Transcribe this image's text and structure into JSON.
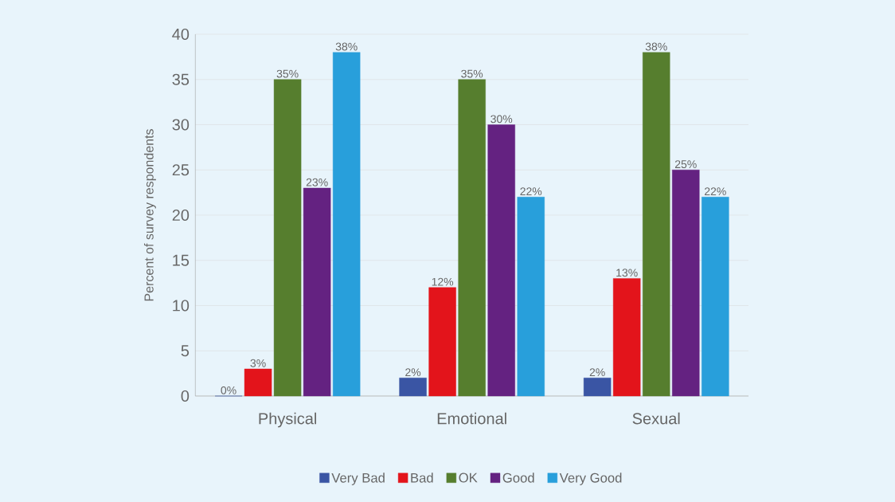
{
  "chart_data": {
    "type": "bar",
    "ylabel": "Percent of survey respondents",
    "categories": [
      "Physical",
      "Emotional",
      "Sexual"
    ],
    "series": [
      {
        "name": "Very Bad",
        "color": "#3a55a4",
        "values": [
          0,
          2,
          2
        ],
        "value_labels": [
          "0%",
          "2%",
          "2%"
        ]
      },
      {
        "name": "Bad",
        "color": "#e3141b",
        "values": [
          3,
          12,
          13
        ],
        "value_labels": [
          "3%",
          "12%",
          "13%"
        ]
      },
      {
        "name": "OK",
        "color": "#567e2e",
        "values": [
          35,
          35,
          38
        ],
        "value_labels": [
          "35%",
          "35%",
          "38%"
        ]
      },
      {
        "name": "Good",
        "color": "#642281",
        "values": [
          23,
          30,
          25
        ],
        "value_labels": [
          "23%",
          "30%",
          "25%"
        ]
      },
      {
        "name": "Very Good",
        "color": "#289fdb",
        "values": [
          38,
          22,
          22
        ],
        "value_labels": [
          "38%",
          "22%",
          "22%"
        ]
      }
    ],
    "ylim": [
      0,
      40
    ],
    "yticks": [
      0,
      5,
      10,
      15,
      20,
      25,
      30,
      35,
      40
    ],
    "grid": "y",
    "legend": "bottom"
  }
}
